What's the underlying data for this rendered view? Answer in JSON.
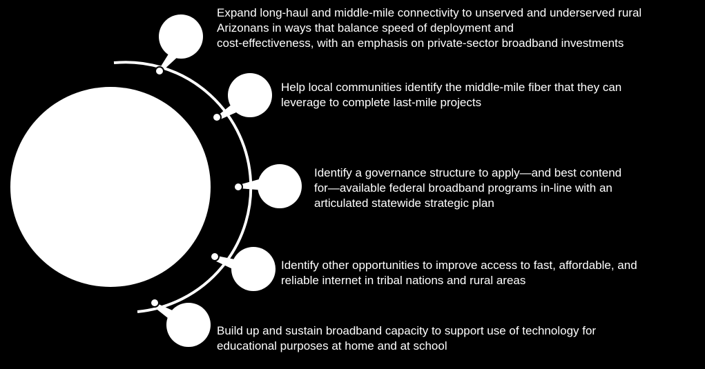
{
  "colors": {
    "background": "#000000",
    "foreground": "#ffffff"
  },
  "goals": [
    {
      "text": "Expand long-haul and middle-mile connectivity to unserved and underserved rural\nArizonans in ways that balance speed of deployment and\ncost-effectiveness, with an emphasis on private-sector broadband investments"
    },
    {
      "text": "Help local communities identify the middle-mile fiber that they can\nleverage to complete last-mile projects"
    },
    {
      "text": "Identify a governance structure to apply—and best contend\nfor—available federal broadband programs in-line with an\narticulated statewide strategic plan"
    },
    {
      "text": "Identify other opportunities to improve access to fast, affordable, and\nreliable internet in tribal nations and rural areas"
    },
    {
      "text": "Build up and sustain broadband capacity to support use of technology for\neducational purposes at home and at school"
    }
  ]
}
